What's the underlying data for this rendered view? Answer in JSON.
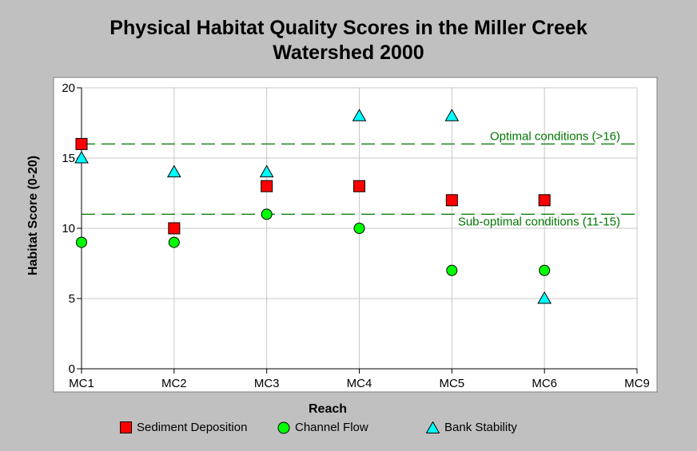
{
  "chart_data": {
    "type": "scatter",
    "title_line1": "Physical Habitat Quality Scores in the Miller Creek",
    "title_line2": "Watershed 2000",
    "xlabel": "Reach",
    "ylabel": "Habitat Score (0-20)",
    "categories": [
      "MC1",
      "MC2",
      "MC3",
      "MC4",
      "MC5",
      "MC6",
      "MC9"
    ],
    "ylim": [
      0,
      20
    ],
    "yticks": [
      0,
      5,
      10,
      15,
      20
    ],
    "grid": true,
    "series": [
      {
        "name": "Sediment Deposition",
        "marker": "square",
        "color": "#ff0000",
        "values": [
          16,
          10,
          13,
          13,
          12,
          12,
          null
        ]
      },
      {
        "name": "Channel Flow",
        "marker": "circle",
        "color": "#00ff00",
        "values": [
          9,
          9,
          11,
          10,
          7,
          7,
          null
        ]
      },
      {
        "name": "Bank Stability",
        "marker": "triangle",
        "color": "#00ffff",
        "values": [
          15,
          14,
          14,
          18,
          18,
          5,
          null
        ]
      }
    ],
    "reference_lines": [
      {
        "value": 16,
        "label": "Optimal conditions (>16)",
        "color": "#007700"
      },
      {
        "value": 11,
        "label": "Sub-optimal conditions (11-15)",
        "color": "#007700"
      }
    ]
  },
  "legend": {
    "sediment": "Sediment Deposition",
    "flow": "Channel Flow",
    "bank": "Bank Stability"
  }
}
